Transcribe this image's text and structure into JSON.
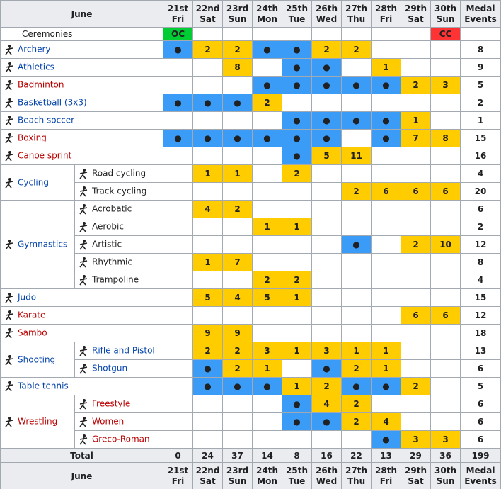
{
  "header": {
    "month": "June",
    "days": [
      {
        "date": "21st",
        "weekday": "Fri"
      },
      {
        "date": "22nd",
        "weekday": "Sat"
      },
      {
        "date": "23rd",
        "weekday": "Sun"
      },
      {
        "date": "24th",
        "weekday": "Mon"
      },
      {
        "date": "25th",
        "weekday": "Tue"
      },
      {
        "date": "26th",
        "weekday": "Wed"
      },
      {
        "date": "27th",
        "weekday": "Thu"
      },
      {
        "date": "28th",
        "weekday": "Fri"
      },
      {
        "date": "29th",
        "weekday": "Sat"
      },
      {
        "date": "30th",
        "weekday": "Sun"
      }
    ],
    "medals": [
      "Medal",
      "Events"
    ]
  },
  "ceremonies": {
    "name": "Ceremonies",
    "cells": [
      {
        "text": "OC",
        "color": "#00cc33"
      },
      null,
      null,
      null,
      null,
      null,
      null,
      null,
      null,
      {
        "text": "CC",
        "color": "#ff3333"
      }
    ]
  },
  "colors": {
    "event": "#3b9cf8",
    "final": "#ffcc00",
    "blue": "#0645ad",
    "red": "#ba0000",
    "black": "#202122"
  },
  "sports": [
    {
      "name": "Archery",
      "color": "blue",
      "events": [
        {
          "cells": [
            "●",
            2,
            2,
            "●",
            "●",
            2,
            2,
            null,
            null,
            null
          ],
          "medals": 8
        }
      ]
    },
    {
      "name": "Athletics",
      "color": "blue",
      "events": [
        {
          "cells": [
            null,
            null,
            8,
            null,
            "●",
            "●",
            null,
            1,
            null,
            null
          ],
          "medals": 9
        }
      ]
    },
    {
      "name": "Badminton",
      "color": "red",
      "events": [
        {
          "cells": [
            null,
            null,
            null,
            "●",
            "●",
            "●",
            "●",
            "●",
            2,
            3
          ],
          "medals": 5
        }
      ]
    },
    {
      "name": "Basketball (3x3)",
      "color": "blue",
      "events": [
        {
          "cells": [
            "●",
            "●",
            "●",
            2,
            null,
            null,
            null,
            null,
            null,
            null
          ],
          "medals": 2
        }
      ]
    },
    {
      "name": "Beach soccer",
      "color": "blue",
      "events": [
        {
          "cells": [
            null,
            null,
            null,
            null,
            "●",
            "●",
            "●",
            "●",
            1,
            null
          ],
          "medals": 1
        }
      ]
    },
    {
      "name": "Boxing",
      "color": "red",
      "events": [
        {
          "cells": [
            "●",
            "●",
            "●",
            "●",
            "●",
            "●",
            null,
            "●",
            7,
            8
          ],
          "medals": 15
        }
      ]
    },
    {
      "name": "Canoe sprint",
      "color": "red",
      "events": [
        {
          "cells": [
            null,
            null,
            null,
            null,
            "●",
            5,
            11,
            null,
            null,
            null
          ],
          "medals": 16
        }
      ]
    },
    {
      "name": "Cycling",
      "color": "blue",
      "events": [
        {
          "name": "Road cycling",
          "color": "black",
          "cells": [
            null,
            1,
            1,
            null,
            2,
            null,
            null,
            null,
            null,
            null
          ],
          "medals": 4
        },
        {
          "name": "Track cycling",
          "color": "black",
          "cells": [
            null,
            null,
            null,
            null,
            null,
            null,
            2,
            6,
            6,
            6
          ],
          "medals": 20
        }
      ]
    },
    {
      "name": "Gymnastics",
      "color": "blue",
      "events": [
        {
          "name": "Acrobatic",
          "color": "black",
          "cells": [
            null,
            4,
            2,
            null,
            null,
            null,
            null,
            null,
            null,
            null
          ],
          "medals": 6
        },
        {
          "name": "Aerobic",
          "color": "black",
          "cells": [
            null,
            null,
            null,
            1,
            1,
            null,
            null,
            null,
            null,
            null
          ],
          "medals": 2
        },
        {
          "name": "Artistic",
          "color": "black",
          "cells": [
            null,
            null,
            null,
            null,
            null,
            null,
            "●",
            null,
            2,
            10
          ],
          "medals": 12
        },
        {
          "name": "Rhythmic",
          "color": "black",
          "cells": [
            null,
            1,
            7,
            null,
            null,
            null,
            null,
            null,
            null,
            null
          ],
          "medals": 8
        },
        {
          "name": "Trampoline",
          "color": "black",
          "cells": [
            null,
            null,
            null,
            2,
            2,
            null,
            null,
            null,
            null,
            null
          ],
          "medals": 4
        }
      ]
    },
    {
      "name": "Judo",
      "color": "blue",
      "events": [
        {
          "cells": [
            null,
            5,
            4,
            5,
            1,
            null,
            null,
            null,
            null,
            null
          ],
          "medals": 15
        }
      ]
    },
    {
      "name": "Karate",
      "color": "red",
      "events": [
        {
          "cells": [
            null,
            null,
            null,
            null,
            null,
            null,
            null,
            null,
            6,
            6
          ],
          "medals": 12
        }
      ]
    },
    {
      "name": "Sambo",
      "color": "red",
      "events": [
        {
          "cells": [
            null,
            9,
            9,
            null,
            null,
            null,
            null,
            null,
            null,
            null
          ],
          "medals": 18
        }
      ]
    },
    {
      "name": "Shooting",
      "color": "blue",
      "events": [
        {
          "name": "Rifle and Pistol",
          "color": "blue",
          "cells": [
            null,
            2,
            2,
            3,
            1,
            3,
            1,
            1,
            null,
            null
          ],
          "medals": 13
        },
        {
          "name": "Shotgun",
          "color": "blue",
          "cells": [
            null,
            "●",
            2,
            1,
            null,
            "●",
            2,
            1,
            null,
            null
          ],
          "medals": 6
        }
      ]
    },
    {
      "name": "Table tennis",
      "color": "blue",
      "events": [
        {
          "cells": [
            null,
            "●",
            "●",
            "●",
            1,
            2,
            "●",
            "●",
            2,
            null
          ],
          "medals": 5
        }
      ]
    },
    {
      "name": "Wrestling",
      "color": "red",
      "events": [
        {
          "name": "Freestyle",
          "color": "red",
          "cells": [
            null,
            null,
            null,
            null,
            "●",
            4,
            2,
            null,
            null,
            null
          ],
          "medals": 6
        },
        {
          "name": "Women",
          "color": "red",
          "cells": [
            null,
            null,
            null,
            null,
            "●",
            "●",
            2,
            4,
            null,
            null
          ],
          "medals": 6
        },
        {
          "name": "Greco-Roman",
          "color": "red",
          "cells": [
            null,
            null,
            null,
            null,
            null,
            null,
            null,
            "●",
            3,
            3
          ],
          "medals": 6
        }
      ]
    }
  ],
  "total": {
    "label": "Total",
    "cells": [
      0,
      24,
      37,
      14,
      8,
      16,
      22,
      13,
      29,
      36
    ],
    "medals": 199
  }
}
